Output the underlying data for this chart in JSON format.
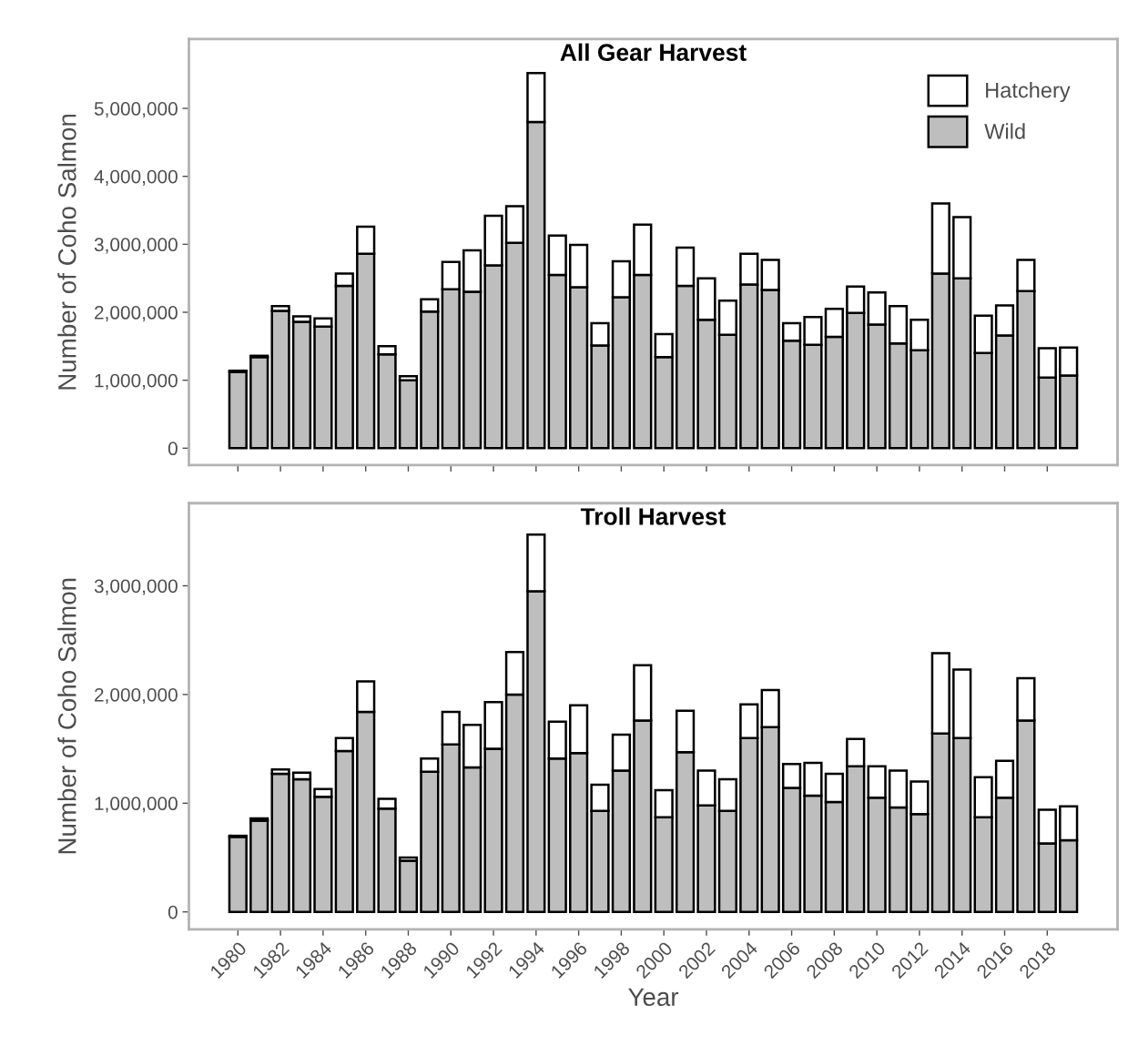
{
  "chart_data": [
    {
      "type": "bar",
      "stacked": true,
      "title": "All Gear Harvest",
      "ylabel": "Number of Coho Salmon",
      "legend": "top right",
      "tick_labels": "y",
      "x": [
        1980,
        1981,
        1982,
        1983,
        1984,
        1985,
        1986,
        1987,
        1988,
        1989,
        1990,
        1991,
        1992,
        1993,
        1994,
        1995,
        1996,
        1997,
        1998,
        1999,
        2000,
        2001,
        2002,
        2003,
        2004,
        2005,
        2006,
        2007,
        2008,
        2009,
        2010,
        2011,
        2012,
        2013,
        2014,
        2015,
        2016,
        2017,
        2018,
        2019
      ],
      "xlim": [
        1977.7,
        2021.3
      ],
      "xticks": [
        1980,
        1982,
        1984,
        1986,
        1988,
        1990,
        1992,
        1994,
        1996,
        1998,
        2000,
        2002,
        2004,
        2006,
        2008,
        2010,
        2012,
        2014,
        2016,
        2018
      ],
      "ylim": [
        -250000,
        6020000
      ],
      "yticks": [
        {
          "value": 0,
          "label": "0"
        },
        {
          "value": 1000000,
          "label": "1,000,000"
        },
        {
          "value": 2000000,
          "label": "2,000,000"
        },
        {
          "value": 3000000,
          "label": "3,000,000"
        },
        {
          "value": 4000000,
          "label": "4,000,000"
        },
        {
          "value": 5000000,
          "label": "5,000,000"
        }
      ],
      "series": [
        {
          "name": "Wild",
          "color": "#bebebe",
          "values": [
            1120000,
            1340000,
            2020000,
            1860000,
            1790000,
            2390000,
            2860000,
            1380000,
            1000000,
            2010000,
            2340000,
            2300000,
            2690000,
            3020000,
            4800000,
            2550000,
            2370000,
            1510000,
            2220000,
            2550000,
            1340000,
            2390000,
            1890000,
            1670000,
            2410000,
            2330000,
            1580000,
            1520000,
            1640000,
            1990000,
            1820000,
            1540000,
            1440000,
            2570000,
            2500000,
            1400000,
            1660000,
            2310000,
            1040000,
            1070000
          ]
        },
        {
          "name": "Hatchery",
          "color": "#ffffff",
          "values": [
            20000,
            20000,
            70000,
            80000,
            120000,
            180000,
            400000,
            120000,
            60000,
            180000,
            400000,
            610000,
            730000,
            540000,
            720000,
            580000,
            620000,
            330000,
            530000,
            740000,
            340000,
            560000,
            610000,
            500000,
            450000,
            440000,
            260000,
            410000,
            410000,
            390000,
            470000,
            550000,
            450000,
            1030000,
            900000,
            550000,
            440000,
            460000,
            430000,
            410000
          ]
        }
      ]
    },
    {
      "type": "bar",
      "stacked": true,
      "title": "Troll Harvest",
      "ylabel": "Number of Coho Salmon",
      "xlabel": "Year",
      "x": [
        1980,
        1981,
        1982,
        1983,
        1984,
        1985,
        1986,
        1987,
        1988,
        1989,
        1990,
        1991,
        1992,
        1993,
        1994,
        1995,
        1996,
        1997,
        1998,
        1999,
        2000,
        2001,
        2002,
        2003,
        2004,
        2005,
        2006,
        2007,
        2008,
        2009,
        2010,
        2011,
        2012,
        2013,
        2014,
        2015,
        2016,
        2017,
        2018,
        2019
      ],
      "xlim": [
        1977.7,
        2021.3
      ],
      "xticks": [
        1980,
        1982,
        1984,
        1986,
        1988,
        1990,
        1992,
        1994,
        1996,
        1998,
        2000,
        2002,
        2004,
        2006,
        2008,
        2010,
        2012,
        2014,
        2016,
        2018
      ],
      "ylim": [
        -160000,
        3760000
      ],
      "yticks": [
        {
          "value": 0,
          "label": "0"
        },
        {
          "value": 1000000,
          "label": "1,000,000"
        },
        {
          "value": 2000000,
          "label": "2,000,000"
        },
        {
          "value": 3000000,
          "label": "3,000,000"
        }
      ],
      "series": [
        {
          "color": "#bebebe",
          "values": [
            690000,
            840000,
            1270000,
            1220000,
            1060000,
            1480000,
            1840000,
            950000,
            470000,
            1290000,
            1540000,
            1330000,
            1500000,
            2000000,
            2950000,
            1410000,
            1460000,
            930000,
            1300000,
            1760000,
            870000,
            1470000,
            980000,
            930000,
            1600000,
            1700000,
            1140000,
            1070000,
            1010000,
            1340000,
            1050000,
            960000,
            900000,
            1640000,
            1600000,
            870000,
            1050000,
            1760000,
            630000,
            660000
          ]
        },
        {
          "color": "#ffffff",
          "values": [
            10000,
            20000,
            40000,
            60000,
            70000,
            120000,
            280000,
            90000,
            30000,
            120000,
            300000,
            390000,
            430000,
            390000,
            520000,
            340000,
            440000,
            240000,
            330000,
            510000,
            250000,
            380000,
            320000,
            290000,
            310000,
            340000,
            220000,
            300000,
            260000,
            250000,
            290000,
            340000,
            300000,
            740000,
            630000,
            370000,
            340000,
            390000,
            310000,
            310000
          ]
        }
      ]
    }
  ]
}
